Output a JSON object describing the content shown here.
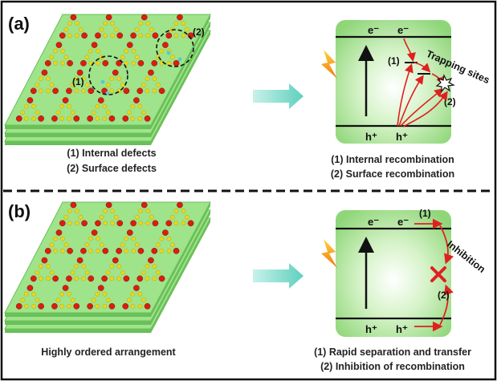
{
  "panel_a": {
    "label": "(a)",
    "defect_mark_1": "(1)",
    "defect_mark_2": "(2)",
    "caption_left": [
      "(1) Internal defects",
      "(2) Surface defects"
    ],
    "band": {
      "electron_1": "e⁻",
      "electron_2": "e⁻",
      "hole_1": "h⁺",
      "hole_2": "h⁺",
      "path_mark_1": "(1)",
      "path_mark_2": "(2)",
      "trap_label": "Trapping sites"
    },
    "caption_right": [
      "(1) Internal recombination",
      "(2) Surface recombination"
    ]
  },
  "panel_b": {
    "label": "(b)",
    "caption_left": "Highly ordered arrangement",
    "band": {
      "electron_1": "e⁻",
      "electron_2": "e⁻",
      "hole_1": "h⁺",
      "hole_2": "h⁺",
      "path_mark_1": "(1)",
      "path_mark_2": "(2)",
      "inhibit_label": "Inhibition"
    },
    "caption_right": [
      "(1) Rapid separation and transfer",
      "(2) Inhibition of recombination"
    ]
  },
  "colors": {
    "layer_fill": "#9fe38b",
    "layer_edge": "#6ac059",
    "atom_red": "#d91e10",
    "atom_yellow": "#e8d81a",
    "defect_cyan": "#5cc6d4",
    "arrow_teal": "#6fd6c6",
    "red_path": "#e02020"
  }
}
